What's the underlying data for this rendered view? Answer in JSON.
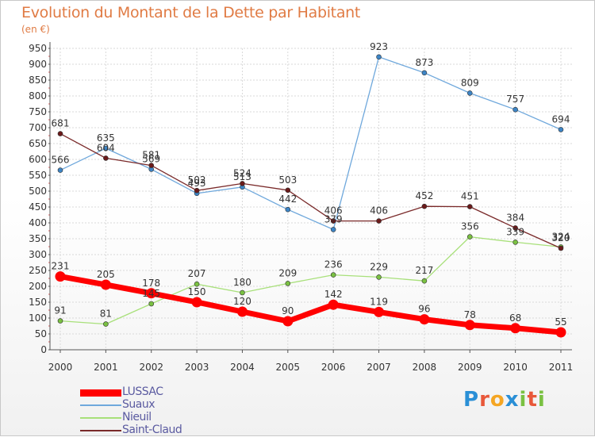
{
  "title": "Evolution du Montant de la Dette par Habitant",
  "unit_label": "(en €)",
  "logo": {
    "text": "Proxiti",
    "letters": [
      "P",
      "r",
      "o",
      "x",
      "i",
      "t",
      "i"
    ],
    "colors": [
      "#2a8fd6",
      "#e8583a",
      "#f5a623",
      "#2a8fd6",
      "#7ac142",
      "#e8583a",
      "#7ac142"
    ]
  },
  "chart_data": {
    "type": "line",
    "title": "Evolution du Montant de la Dette par Habitant",
    "ylabel": "(en €)",
    "xlabel": "",
    "ylim": [
      0,
      950
    ],
    "yticks": [
      0,
      50,
      100,
      150,
      200,
      250,
      300,
      350,
      400,
      450,
      500,
      550,
      600,
      650,
      700,
      750,
      800,
      850,
      900,
      950
    ],
    "grid": true,
    "legend_position": "bottom-left",
    "x": [
      "2000",
      "2001",
      "2002",
      "2003",
      "2004",
      "2005",
      "2006",
      "2007",
      "2008",
      "2009",
      "2010",
      "2011"
    ],
    "series": [
      {
        "name": "LUSSAC",
        "color": "#ff0000",
        "marker": "#ff0000",
        "width": 7,
        "values": [
          231,
          205,
          178,
          150,
          120,
          90,
          142,
          119,
          96,
          78,
          68,
          55
        ]
      },
      {
        "name": "Suaux",
        "color": "#6fa8dc",
        "marker": "#3d85c6",
        "width": 1.3,
        "values": [
          566,
          635,
          569,
          493,
          513,
          442,
          379,
          923,
          873,
          809,
          757,
          694
        ]
      },
      {
        "name": "Nieuil",
        "color": "#a8e07a",
        "marker": "#7ac142",
        "width": 1.3,
        "values": [
          91,
          81,
          145,
          207,
          180,
          209,
          236,
          229,
          217,
          356,
          339,
          324
        ]
      },
      {
        "name": "Saint-Claud",
        "color": "#7a2a2a",
        "marker": "#6b1a1a",
        "width": 1.3,
        "values": [
          681,
          604,
          581,
          502,
          524,
          503,
          406,
          406,
          452,
          451,
          384,
          320
        ]
      }
    ]
  }
}
